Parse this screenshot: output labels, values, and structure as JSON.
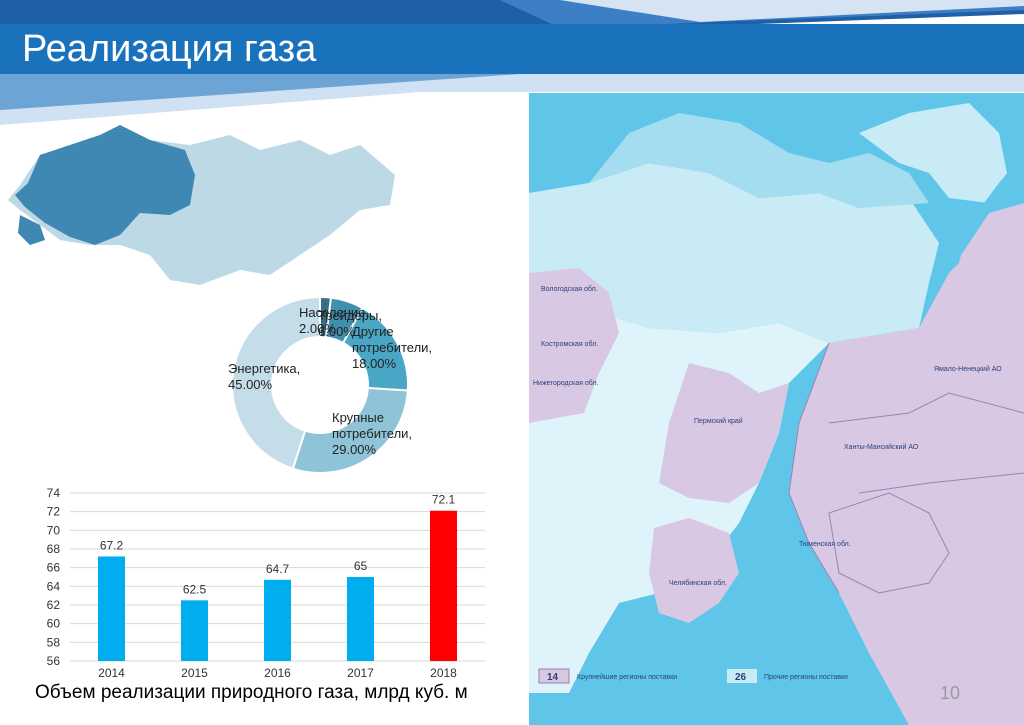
{
  "slide": {
    "title": "Реализация газа",
    "page_number": "10",
    "caption": "Объем реализации природного газа, млрд куб. м"
  },
  "colors": {
    "title_band": "#1a72bd",
    "bar_default": "#00aeef",
    "bar_highlight": "#ff0000",
    "map_region_primary": "#d9c8e3",
    "map_region_secondary": "#c9ebf5",
    "map_sea": "#5fc6ea"
  },
  "map": {
    "regions": [
      {
        "name": "Вологодская обл."
      },
      {
        "name": "Костромская обл."
      },
      {
        "name": "Нижегородская обл."
      },
      {
        "name": "Пермский край"
      },
      {
        "name": "Ямало-Ненецкий АО"
      },
      {
        "name": "Ханты-Мансийский АО"
      },
      {
        "name": "Тюменская обл."
      },
      {
        "name": "Челябинская обл."
      }
    ],
    "legend": [
      {
        "count": "14",
        "label": "Крупнейшие регионы поставки"
      },
      {
        "count": "26",
        "label": "Прочие регионы поставки"
      }
    ]
  },
  "chart_data": [
    {
      "type": "pie",
      "donut": true,
      "slices": [
        {
          "label": "Население",
          "value": 2.0,
          "display": "Население, 2.00%"
        },
        {
          "label": "Трейдеры",
          "value": 6.0,
          "display": "Трейдеры, 6.00%"
        },
        {
          "label": "Другие потребители",
          "value": 18.0,
          "display": "Другие потребители, 18.00%"
        },
        {
          "label": "Крупные потребители",
          "value": 29.0,
          "display": "Крупные потребители, 29.00%"
        },
        {
          "label": "Энергетика",
          "value": 45.0,
          "display": "Энергетика, 45.00%"
        }
      ],
      "colors": [
        "#3a6e85",
        "#3f8fae",
        "#4aa6c5",
        "#8ec3d8",
        "#c4dde8"
      ]
    },
    {
      "type": "bar",
      "categories": [
        "2014",
        "2015",
        "2016",
        "2017",
        "2018"
      ],
      "values": [
        67.2,
        62.5,
        64.7,
        65,
        72.1
      ],
      "value_labels": [
        "67.2",
        "62.5",
        "64.7",
        "65",
        "72.1"
      ],
      "title": "Объем реализации природного газа, млрд куб. м",
      "ylim": [
        56,
        74
      ],
      "yticks": [
        "56",
        "58",
        "60",
        "62",
        "64",
        "66",
        "68",
        "70",
        "72",
        "74"
      ],
      "grid": true,
      "highlight_index": 4
    }
  ]
}
